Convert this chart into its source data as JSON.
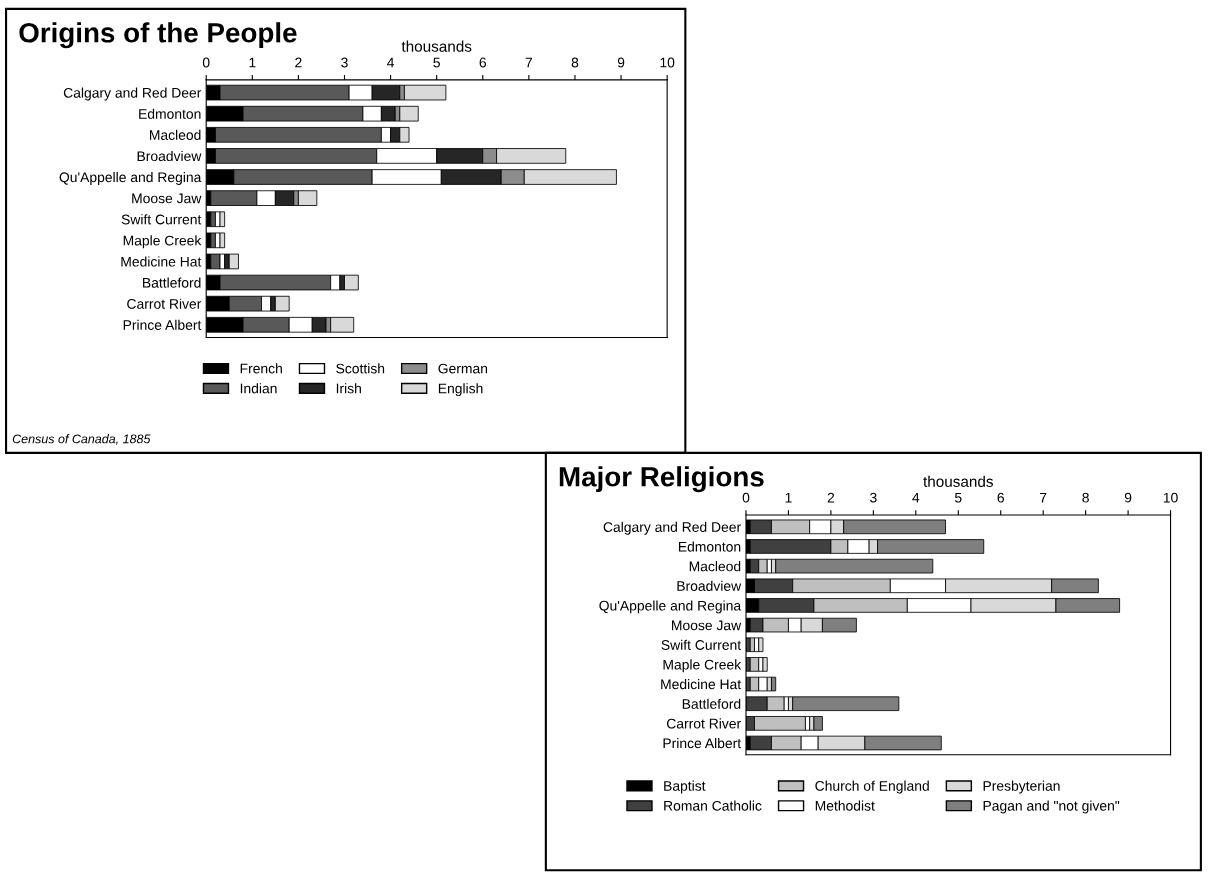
{
  "chart_data": [
    {
      "type": "bar",
      "orientation": "horizontal",
      "stacked": true,
      "title": "Origins of the People",
      "xlabel": "thousands",
      "categories": [
        "Calgary and Red Deer",
        "Edmonton",
        "Macleod",
        "Broadview",
        "Qu'Appelle and Regina",
        "Moose Jaw",
        "Swift Current",
        "Maple Creek",
        "Medicine Hat",
        "Battleford",
        "Carrot River",
        "Prince Albert"
      ],
      "series": [
        {
          "name": "French",
          "color": "#000000",
          "values": [
            0.3,
            0.8,
            0.2,
            0.2,
            0.6,
            0.1,
            0.1,
            0.1,
            0.1,
            0.3,
            0.5,
            0.8
          ]
        },
        {
          "name": "Indian",
          "color": "#595959",
          "values": [
            2.8,
            2.6,
            3.6,
            3.5,
            3.0,
            1.0,
            0.1,
            0.1,
            0.2,
            2.4,
            0.7,
            1.0
          ]
        },
        {
          "name": "Scottish",
          "color": "#ffffff",
          "values": [
            0.5,
            0.4,
            0.2,
            1.3,
            1.5,
            0.4,
            0.1,
            0.1,
            0.1,
            0.2,
            0.2,
            0.5
          ]
        },
        {
          "name": "Irish",
          "color": "#262626",
          "values": [
            0.6,
            0.3,
            0.2,
            1.0,
            1.3,
            0.4,
            null,
            null,
            0.1,
            0.1,
            0.1,
            0.3
          ]
        },
        {
          "name": "German",
          "color": "#8c8c8c",
          "values": [
            0.1,
            0.1,
            null,
            0.3,
            0.5,
            0.1,
            null,
            null,
            null,
            null,
            null,
            0.1
          ]
        },
        {
          "name": "English",
          "color": "#d9d9d9",
          "values": [
            0.9,
            0.4,
            0.2,
            1.5,
            2.0,
            0.4,
            0.1,
            0.1,
            0.2,
            0.3,
            0.3,
            0.5
          ]
        }
      ],
      "xlim": [
        0,
        10
      ],
      "xticks": [
        0,
        1,
        2,
        3,
        4,
        5,
        6,
        7,
        8,
        9,
        10
      ],
      "grid": false,
      "legend": "bottom",
      "annotations": [
        "Census of Canada, 1885"
      ]
    },
    {
      "type": "bar",
      "orientation": "horizontal",
      "stacked": true,
      "title": "Major Religions",
      "xlabel": "thousands",
      "categories": [
        "Calgary and Red Deer",
        "Edmonton",
        "Macleod",
        "Broadview",
        "Qu'Appelle and Regina",
        "Moose Jaw",
        "Swift Current",
        "Maple Creek",
        "Medicine Hat",
        "Battleford",
        "Carrot River",
        "Prince Albert"
      ],
      "series": [
        {
          "name": "Baptist",
          "color": "#000000",
          "values": [
            0.1,
            0.1,
            0.1,
            0.2,
            0.3,
            0.1,
            null,
            null,
            null,
            null,
            null,
            0.1
          ]
        },
        {
          "name": "Roman Catholic",
          "color": "#404040",
          "values": [
            0.5,
            1.9,
            0.2,
            0.9,
            1.3,
            0.3,
            0.1,
            0.1,
            0.1,
            0.5,
            0.2,
            0.5
          ]
        },
        {
          "name": "Church of England",
          "color": "#bfbfbf",
          "values": [
            0.9,
            0.4,
            0.2,
            2.3,
            2.2,
            0.6,
            0.1,
            0.2,
            0.2,
            0.4,
            1.2,
            0.7
          ]
        },
        {
          "name": "Methodist",
          "color": "#ffffff",
          "values": [
            0.5,
            0.5,
            0.1,
            1.3,
            1.5,
            0.3,
            0.1,
            0.1,
            0.2,
            0.1,
            0.1,
            0.4
          ]
        },
        {
          "name": "Presbyterian",
          "color": "#d9d9d9",
          "values": [
            0.3,
            0.2,
            0.1,
            2.5,
            2.0,
            0.5,
            0.1,
            0.1,
            0.1,
            0.1,
            0.1,
            1.1
          ]
        },
        {
          "name": "Pagan and \"not given\"",
          "color": "#7f7f7f",
          "values": [
            2.4,
            2.5,
            3.7,
            1.1,
            1.5,
            0.8,
            null,
            null,
            0.1,
            2.5,
            0.2,
            1.8
          ]
        }
      ],
      "xlim": [
        0,
        10
      ],
      "xticks": [
        0,
        1,
        2,
        3,
        4,
        5,
        6,
        7,
        8,
        9,
        10
      ],
      "grid": false,
      "legend": "bottom"
    }
  ]
}
